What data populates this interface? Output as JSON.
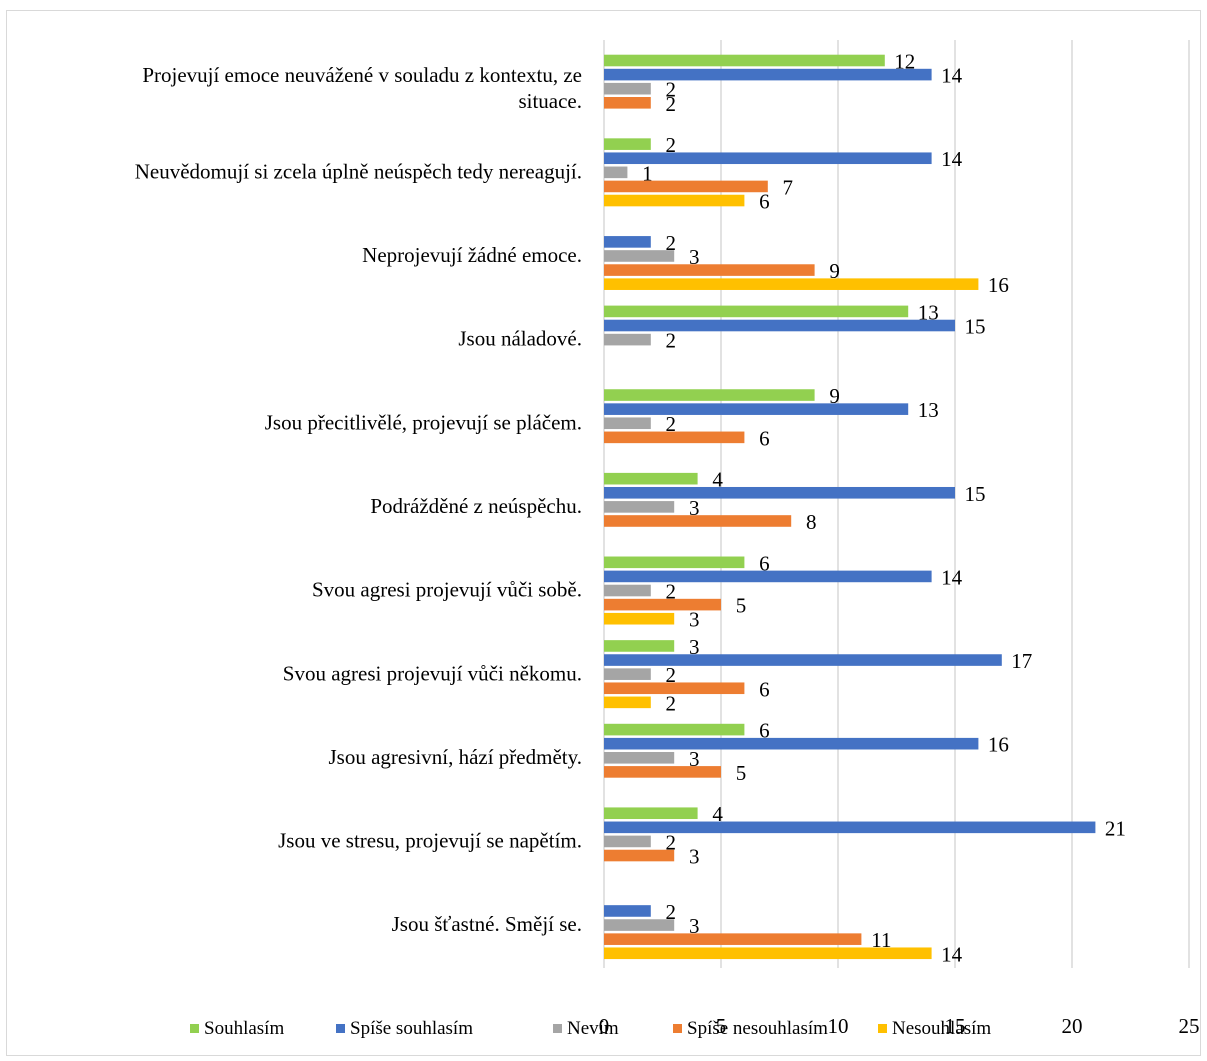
{
  "chart_data": {
    "type": "bar",
    "orientation": "horizontal",
    "title": "",
    "xlabel": "",
    "ylabel": "",
    "xlim": [
      0,
      25
    ],
    "xticks": [
      0,
      5,
      10,
      15,
      20,
      25
    ],
    "grid": true,
    "legend_position": "bottom",
    "categories": [
      "Projevují emoce neuvážené v souladu z kontextu, ze situace.",
      "Neuvědomují si zcela úplně neúspěch tedy nereagují.",
      "Neprojevují žádné emoce.",
      "Jsou náladové.",
      "Jsou přecitlivělé, projevují se pláčem.",
      "Podrážděné z neúspěchu.",
      "Svou agresi projevují vůči sobě.",
      "Svou agresi projevují vůči někomu.",
      "Jsou agresivní, hází předměty.",
      "Jsou ve stresu, projevují se napětím.",
      "Jsou šťastné. Smějí se."
    ],
    "category_lines": [
      [
        "Projevují emoce neuvážené v souladu z kontextu, ze",
        "situace."
      ],
      [
        "Neuvědomují si zcela úplně neúspěch tedy nereagují."
      ],
      [
        "Neprojevují žádné emoce."
      ],
      [
        "Jsou náladové."
      ],
      [
        "Jsou přecitlivělé, projevují se pláčem."
      ],
      [
        "Podrážděné z neúspěchu."
      ],
      [
        "Svou agresi projevují vůči sobě."
      ],
      [
        "Svou agresi projevují vůči někomu."
      ],
      [
        "Jsou agresivní, hází předměty."
      ],
      [
        "Jsou ve stresu, projevují se napětím."
      ],
      [
        "Jsou šťastné. Smějí se."
      ]
    ],
    "series": [
      {
        "name": "Souhlasím",
        "color": "#92d050",
        "values": [
          12,
          2,
          null,
          13,
          9,
          4,
          6,
          3,
          6,
          4,
          null
        ]
      },
      {
        "name": "Spíše souhlasím",
        "color": "#4472c4",
        "values": [
          14,
          14,
          2,
          15,
          13,
          15,
          14,
          17,
          16,
          21,
          2
        ]
      },
      {
        "name": "Nevím",
        "color": "#a5a5a5",
        "values": [
          2,
          1,
          3,
          2,
          2,
          3,
          2,
          2,
          3,
          2,
          3
        ]
      },
      {
        "name": "Spíše nesouhlasím",
        "color": "#ed7d31",
        "values": [
          2,
          7,
          9,
          null,
          6,
          8,
          5,
          6,
          5,
          3,
          11
        ]
      },
      {
        "name": "Nesouhlasím",
        "color": "#ffc000",
        "values": [
          null,
          6,
          16,
          null,
          null,
          null,
          3,
          2,
          null,
          null,
          14
        ]
      }
    ]
  }
}
